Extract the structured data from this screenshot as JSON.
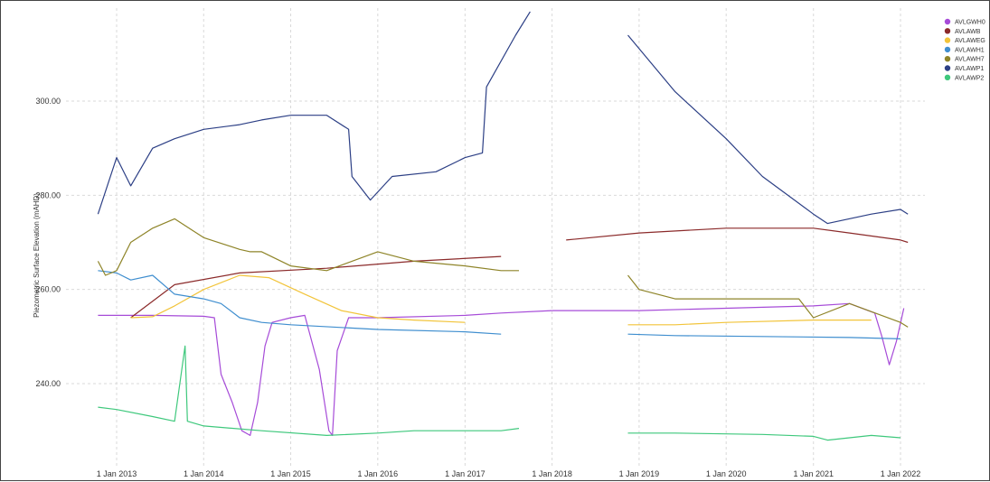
{
  "chart_data": {
    "type": "line",
    "title": "",
    "xlabel": "",
    "ylabel": "Piezometric Surface Elevation (mAHD)",
    "x_range": [
      "2012-07-01",
      "2022-06-01"
    ],
    "ylim": [
      226,
      320
    ],
    "y_ticks": [
      {
        "value": 240,
        "label": "240.00"
      },
      {
        "value": 260,
        "label": "260.00"
      },
      {
        "value": 280,
        "label": "280.00"
      },
      {
        "value": 300,
        "label": "300.00"
      }
    ],
    "x_ticks": [
      {
        "date": "2013-01-01",
        "label": "1 Jan 2013"
      },
      {
        "date": "2014-01-01",
        "label": "1 Jan 2014"
      },
      {
        "date": "2015-01-01",
        "label": "1 Jan 2015"
      },
      {
        "date": "2016-01-01",
        "label": "1 Jan 2016"
      },
      {
        "date": "2017-01-01",
        "label": "1 Jan 2017"
      },
      {
        "date": "2018-01-01",
        "label": "1 Jan 2018"
      },
      {
        "date": "2019-01-01",
        "label": "1 Jan 2019"
      },
      {
        "date": "2020-01-01",
        "label": "1 Jan 2020"
      },
      {
        "date": "2021-01-01",
        "label": "1 Jan 2021"
      },
      {
        "date": "2022-01-01",
        "label": "1 Jan 2022"
      }
    ],
    "grid": true,
    "legend_position": "top-right",
    "series": [
      {
        "name": "AVLGWH0",
        "color": "#a64bd8",
        "segments": [
          [
            [
              "2012-10-15",
              254.5
            ],
            [
              "2013-06-01",
              254.5
            ],
            [
              "2014-01-01",
              254.3
            ],
            [
              "2014-02-15",
              254
            ],
            [
              "2014-03-15",
              242
            ],
            [
              "2014-05-01",
              236
            ],
            [
              "2014-06-10",
              230
            ],
            [
              "2014-07-15",
              229
            ],
            [
              "2014-08-15",
              236
            ],
            [
              "2014-09-15",
              248
            ],
            [
              "2014-10-15",
              253
            ],
            [
              "2015-01-01",
              254
            ],
            [
              "2015-03-01",
              254.5
            ],
            [
              "2015-05-01",
              243
            ],
            [
              "2015-06-10",
              230
            ],
            [
              "2015-06-25",
              229
            ],
            [
              "2015-07-15",
              247
            ],
            [
              "2015-09-01",
              254
            ],
            [
              "2016-01-01",
              254
            ],
            [
              "2017-01-01",
              254.5
            ],
            [
              "2017-06-01",
              255
            ],
            [
              "2018-01-01",
              255.5
            ]
          ],
          [
            [
              "2018-01-01",
              255.5
            ],
            [
              "2019-01-01",
              255.5
            ],
            [
              "2020-01-01",
              256
            ],
            [
              "2021-01-01",
              256.5
            ],
            [
              "2021-06-01",
              257
            ],
            [
              "2021-09-15",
              255
            ],
            [
              "2021-10-15",
              250
            ],
            [
              "2021-11-15",
              244
            ],
            [
              "2021-12-15",
              249
            ],
            [
              "2022-01-15",
              256
            ]
          ]
        ]
      },
      {
        "name": "AVLAWB",
        "color": "#8b2a2a",
        "segments": [
          [
            [
              "2013-03-01",
              254
            ],
            [
              "2013-09-01",
              261
            ],
            [
              "2014-06-01",
              263.5
            ],
            [
              "2015-06-01",
              264.5
            ],
            [
              "2016-06-01",
              266
            ],
            [
              "2017-06-01",
              267
            ]
          ],
          [
            [
              "2018-03-01",
              270.5
            ],
            [
              "2019-01-01",
              272
            ],
            [
              "2020-01-01",
              273
            ],
            [
              "2021-01-01",
              273
            ],
            [
              "2021-06-01",
              272
            ],
            [
              "2022-01-01",
              270.5
            ],
            [
              "2022-02-01",
              270
            ]
          ]
        ]
      },
      {
        "name": "AVLAWEG",
        "color": "#f2c43a",
        "segments": [
          [
            [
              "2013-03-01",
              254
            ],
            [
              "2013-06-01",
              254.2
            ],
            [
              "2013-09-01",
              256.5
            ],
            [
              "2014-01-01",
              260
            ],
            [
              "2014-06-01",
              263
            ],
            [
              "2014-10-01",
              262.5
            ],
            [
              "2015-03-01",
              259
            ],
            [
              "2015-08-01",
              255.5
            ],
            [
              "2016-01-01",
              254
            ],
            [
              "2016-06-01",
              253.5
            ],
            [
              "2017-01-01",
              253
            ]
          ],
          [
            [
              "2018-11-15",
              252.5
            ],
            [
              "2019-06-01",
              252.5
            ],
            [
              "2020-01-01",
              253
            ],
            [
              "2021-01-01",
              253.5
            ],
            [
              "2021-09-01",
              253.5
            ]
          ]
        ]
      },
      {
        "name": "AVLAWH1",
        "color": "#3f8ecf",
        "segments": [
          [
            [
              "2012-10-15",
              264
            ],
            [
              "2013-01-01",
              263.5
            ],
            [
              "2013-03-01",
              262
            ],
            [
              "2013-06-01",
              263
            ],
            [
              "2013-09-01",
              259
            ],
            [
              "2014-01-01",
              258
            ],
            [
              "2014-03-15",
              257
            ],
            [
              "2014-06-01",
              254
            ],
            [
              "2014-09-01",
              253
            ],
            [
              "2015-01-01",
              252.5
            ],
            [
              "2016-01-01",
              251.5
            ],
            [
              "2017-01-01",
              251
            ],
            [
              "2017-06-01",
              250.5
            ]
          ],
          [
            [
              "2018-11-15",
              250.5
            ],
            [
              "2019-06-01",
              250.2
            ],
            [
              "2020-06-01",
              250
            ],
            [
              "2021-06-01",
              249.8
            ],
            [
              "2022-01-01",
              249.5
            ]
          ]
        ]
      },
      {
        "name": "AVLAWH7",
        "color": "#8e8428",
        "segments": [
          [
            [
              "2012-10-15",
              266
            ],
            [
              "2012-11-15",
              263
            ],
            [
              "2013-01-01",
              264
            ],
            [
              "2013-03-01",
              270
            ],
            [
              "2013-06-01",
              273
            ],
            [
              "2013-09-01",
              275
            ],
            [
              "2014-01-01",
              271
            ],
            [
              "2014-06-01",
              268.5
            ],
            [
              "2014-07-15",
              268
            ],
            [
              "2014-09-01",
              268
            ],
            [
              "2015-01-01",
              265
            ],
            [
              "2015-06-01",
              264
            ],
            [
              "2016-01-01",
              268
            ],
            [
              "2016-06-01",
              266
            ],
            [
              "2017-01-01",
              265
            ],
            [
              "2017-06-01",
              264
            ],
            [
              "2017-08-15",
              264
            ]
          ],
          [
            [
              "2018-11-15",
              263
            ],
            [
              "2019-01-01",
              260
            ],
            [
              "2019-06-01",
              258
            ],
            [
              "2020-06-01",
              258
            ],
            [
              "2020-11-01",
              258
            ],
            [
              "2021-01-01",
              254
            ],
            [
              "2021-06-01",
              257
            ],
            [
              "2022-01-01",
              253
            ],
            [
              "2022-02-01",
              252
            ]
          ]
        ]
      },
      {
        "name": "AVLAWP1",
        "color": "#2c3f85",
        "segments": [
          [
            [
              "2012-10-15",
              276
            ],
            [
              "2013-01-01",
              288
            ],
            [
              "2013-03-01",
              282
            ],
            [
              "2013-06-01",
              290
            ],
            [
              "2013-09-01",
              292
            ],
            [
              "2014-01-01",
              294
            ],
            [
              "2014-06-01",
              295
            ],
            [
              "2014-09-01",
              296
            ],
            [
              "2015-01-01",
              297
            ],
            [
              "2015-06-01",
              297
            ],
            [
              "2015-09-01",
              294
            ],
            [
              "2015-09-15",
              284
            ],
            [
              "2015-12-01",
              279
            ],
            [
              "2016-03-01",
              284
            ],
            [
              "2016-09-01",
              285
            ],
            [
              "2017-01-01",
              288
            ],
            [
              "2017-03-15",
              289
            ],
            [
              "2017-04-01",
              303
            ],
            [
              "2017-08-01",
              314
            ],
            [
              "2017-10-01",
              319
            ]
          ],
          [
            [
              "2018-11-15",
              314
            ],
            [
              "2019-06-01",
              302
            ],
            [
              "2020-01-01",
              292
            ],
            [
              "2020-06-01",
              284
            ],
            [
              "2021-01-01",
              276
            ],
            [
              "2021-03-01",
              274
            ],
            [
              "2021-09-01",
              276
            ],
            [
              "2022-01-01",
              277
            ],
            [
              "2022-02-01",
              276
            ]
          ]
        ]
      },
      {
        "name": "AVLAWP2",
        "color": "#3ec87c",
        "segments": [
          [
            [
              "2012-10-15",
              235
            ],
            [
              "2013-01-01",
              234.5
            ],
            [
              "2013-06-01",
              233
            ],
            [
              "2013-09-01",
              232
            ],
            [
              "2013-10-15",
              248
            ],
            [
              "2013-10-25",
              232
            ],
            [
              "2014-01-01",
              231
            ],
            [
              "2014-09-01",
              230
            ],
            [
              "2015-06-01",
              229
            ],
            [
              "2016-01-01",
              229.5
            ],
            [
              "2016-06-01",
              230
            ],
            [
              "2017-06-01",
              230
            ],
            [
              "2017-08-15",
              230.5
            ]
          ],
          [
            [
              "2018-11-15",
              229.5
            ],
            [
              "2019-06-01",
              229.5
            ],
            [
              "2020-06-01",
              229.2
            ],
            [
              "2021-01-01",
              228.8
            ],
            [
              "2021-03-01",
              228
            ],
            [
              "2021-09-01",
              229
            ],
            [
              "2022-01-01",
              228.5
            ]
          ]
        ]
      }
    ]
  }
}
